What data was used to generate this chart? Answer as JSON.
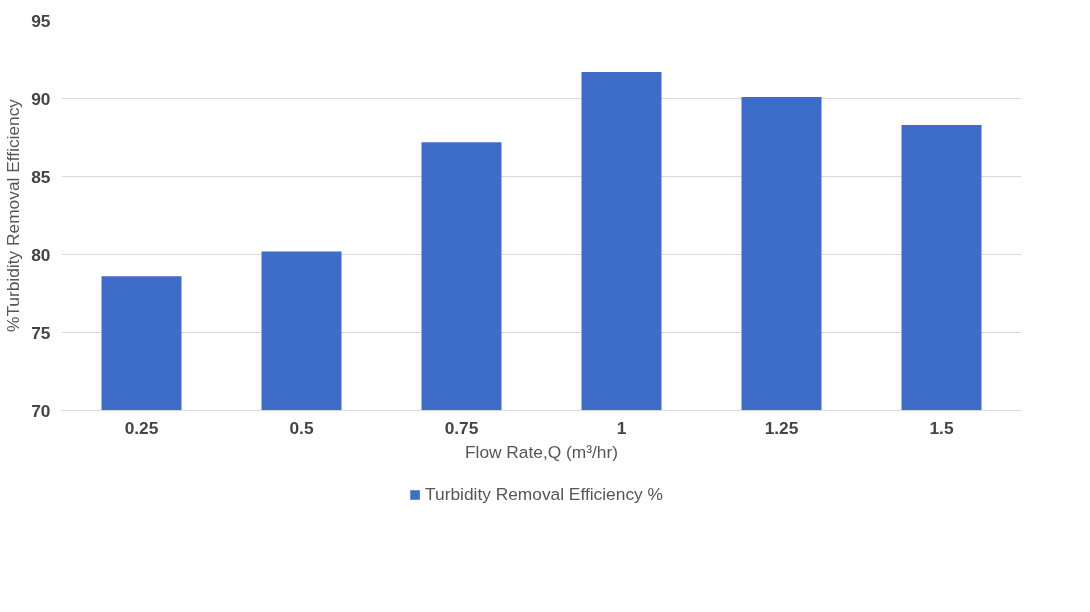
{
  "chart_data": {
    "type": "bar",
    "categories": [
      "0.25",
      "0.5",
      "0.75",
      "1",
      "1.25",
      "1.5"
    ],
    "series": [
      {
        "name": "Turbidity Removal Efficiency %",
        "color": "#3d6cc9",
        "values": [
          78.6,
          80.2,
          87.2,
          91.7,
          90.1,
          88.3
        ]
      }
    ],
    "xlabel": "Flow Rate,Q (m³/hr)",
    "ylabel": "%Turbidity Removal Efficiency",
    "ylim": [
      70,
      95
    ],
    "yticks": [
      70,
      75,
      80,
      85,
      90,
      95
    ],
    "grid": "y",
    "legend": "bottom"
  }
}
